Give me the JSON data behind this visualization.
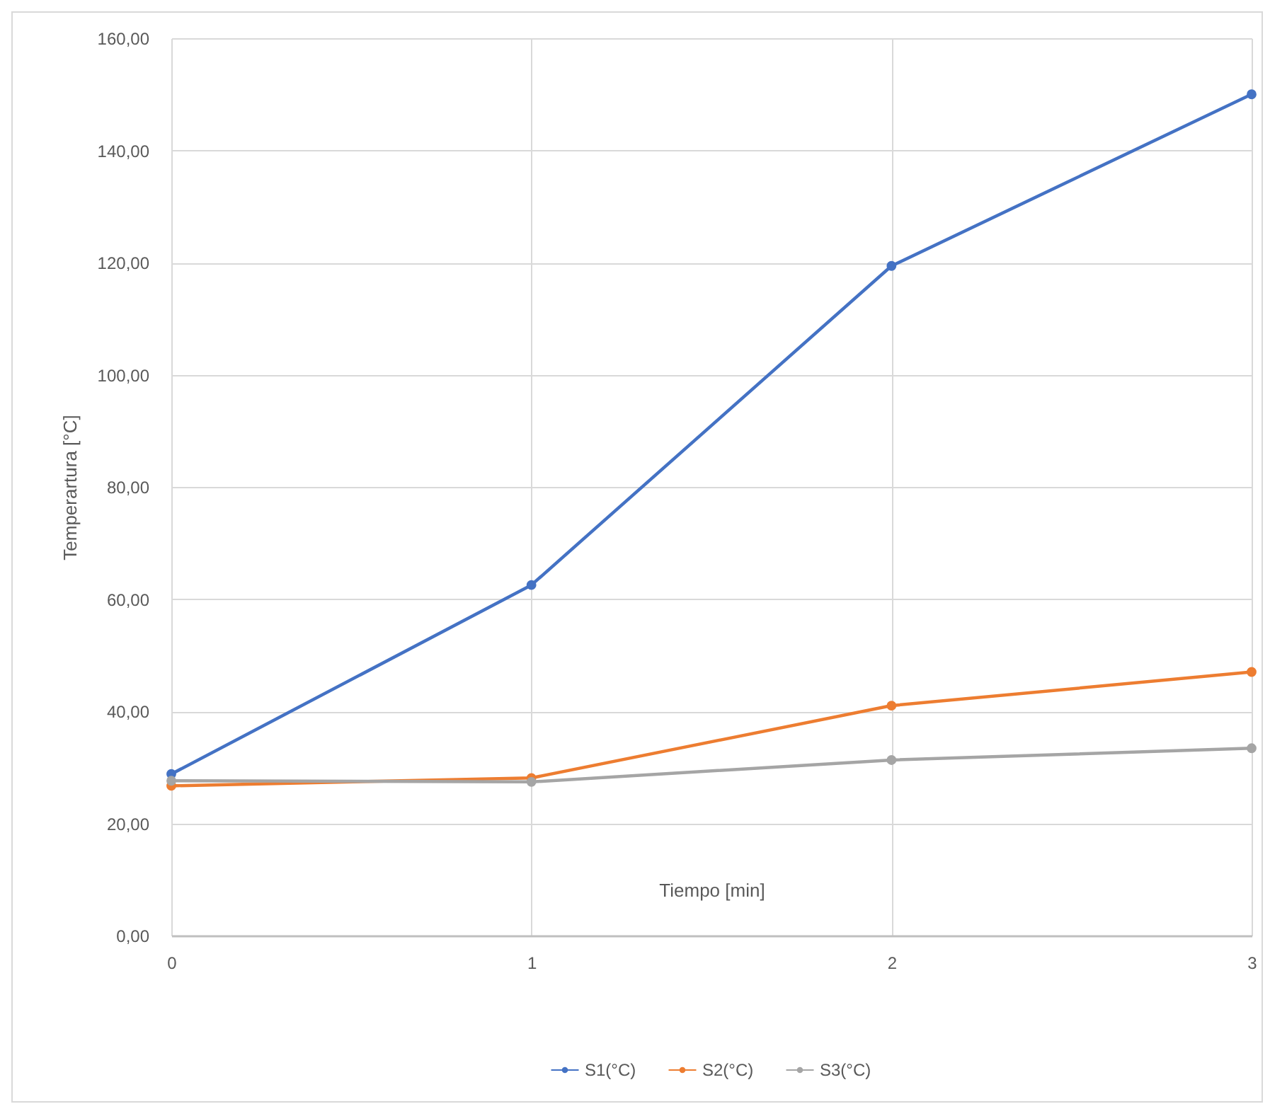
{
  "chart_data": {
    "type": "line",
    "xlabel": "Tiempo [min]",
    "ylabel": "Temperartura [°C]",
    "x": [
      0,
      1,
      2,
      3
    ],
    "series": [
      {
        "name": "S1(°C)",
        "color": "#4472c4",
        "values": [
          28.8,
          62.5,
          119.4,
          150.0
        ]
      },
      {
        "name": "S2(°C)",
        "color": "#ed7d31",
        "values": [
          26.7,
          28.1,
          41.0,
          47.0
        ]
      },
      {
        "name": "S3(°C)",
        "color": "#a5a5a5",
        "values": [
          27.6,
          27.4,
          31.3,
          33.4
        ]
      }
    ],
    "xlim": [
      0,
      3
    ],
    "xticks": [
      0,
      1,
      2,
      3
    ],
    "ylim": [
      0,
      160
    ],
    "yticks": [
      {
        "value": 0,
        "label": "0,00"
      },
      {
        "value": 20,
        "label": "20,00"
      },
      {
        "value": 40,
        "label": "40,00"
      },
      {
        "value": 60,
        "label": "60,00"
      },
      {
        "value": 80,
        "label": "80,00"
      },
      {
        "value": 100,
        "label": "100,00"
      },
      {
        "value": 120,
        "label": "120,00"
      },
      {
        "value": 140,
        "label": "140,00"
      },
      {
        "value": 160,
        "label": "160,00"
      }
    ],
    "grid": true,
    "legend": "bottom",
    "marker": "circle",
    "line_style": "solid"
  }
}
